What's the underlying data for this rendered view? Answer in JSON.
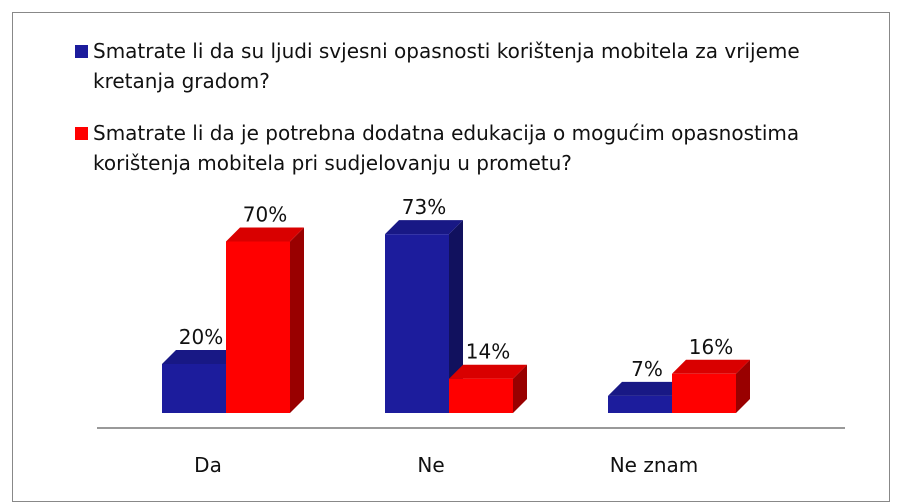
{
  "chart_data": {
    "type": "bar3d",
    "categories": [
      "Da",
      "Ne",
      "Ne znam"
    ],
    "series": [
      {
        "name": "Smatrate li da su ljudi svjesni opasnosti korištenja mobitela za vrijeme kretanja gradom?",
        "color": "#1c1c9c",
        "values": [
          20,
          73,
          7
        ],
        "value_labels": [
          "20%",
          "73%",
          "7%"
        ]
      },
      {
        "name": "Smatrate li da je potrebna dodatna edukacija o mogućim opasnostima korištenja mobitela pri sudjelovanju u prometu?",
        "color": "#ff0000",
        "values": [
          70,
          14,
          16
        ],
        "value_labels": [
          "70%",
          "14%",
          "16%"
        ]
      }
    ]
  }
}
